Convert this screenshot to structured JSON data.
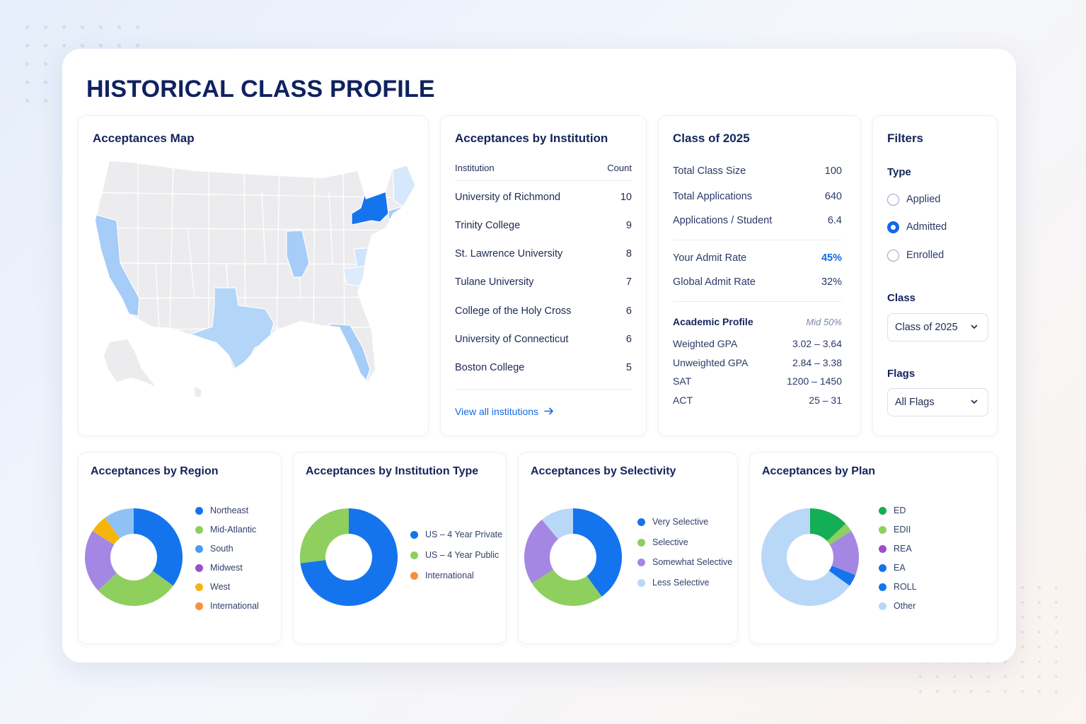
{
  "page": {
    "title": "HISTORICAL CLASS PROFILE"
  },
  "colors": {
    "blue": "#1474EE",
    "green": "#8ECF5E",
    "sky": "#4A9CEE",
    "purple": "#A487E3",
    "violet": "#9B4FCB",
    "amber": "#F6B40F",
    "orange": "#F4913C",
    "pale": "#B9D8F8",
    "emerald": "#14AE56",
    "accent": "#1368E8"
  },
  "map": {
    "title": "Acceptances Map",
    "highlighted_states": [
      {
        "state": "New York",
        "level": "high"
      },
      {
        "state": "California",
        "level": "medium"
      },
      {
        "state": "Illinois",
        "level": "medium"
      },
      {
        "state": "Texas",
        "level": "low"
      },
      {
        "state": "Florida",
        "level": "low"
      },
      {
        "state": "Massachusetts",
        "level": "low"
      },
      {
        "state": "Maine",
        "level": "faint"
      },
      {
        "state": "Virginia",
        "level": "faint"
      },
      {
        "state": "North Carolina",
        "level": "faint"
      }
    ]
  },
  "institutions": {
    "title": "Acceptances by Institution",
    "col_institution": "Institution",
    "col_count": "Count",
    "rows": [
      {
        "name": "University of Richmond",
        "count": "10"
      },
      {
        "name": "Trinity College",
        "count": "9"
      },
      {
        "name": "St. Lawrence University",
        "count": "8"
      },
      {
        "name": "Tulane University",
        "count": "7"
      },
      {
        "name": "College of the Holy Cross",
        "count": "6"
      },
      {
        "name": "University of Connecticut",
        "count": "6"
      },
      {
        "name": "Boston College",
        "count": "5"
      }
    ],
    "view_all": "View all institutions"
  },
  "class_profile": {
    "title": "Class of 2025",
    "total_class_size_label": "Total Class Size",
    "total_class_size": "100",
    "total_applications_label": "Total Applications",
    "total_applications": "640",
    "apps_per_student_label": "Applications / Student",
    "apps_per_student": "6.4",
    "your_admit_rate_label": "Your Admit Rate",
    "your_admit_rate": "45%",
    "global_admit_rate_label": "Global Admit Rate",
    "global_admit_rate": "32%",
    "academic_title": "Academic Profile",
    "academic_mid": "Mid 50%",
    "weighted_gpa_label": "Weighted GPA",
    "weighted_gpa": "3.02 – 3.64",
    "unweighted_gpa_label": "Unweighted GPA",
    "unweighted_gpa": "2.84 – 3.38",
    "sat_label": "SAT",
    "sat": "1200 – 1450",
    "act_label": "ACT",
    "act": "25 – 31"
  },
  "filters": {
    "title": "Filters",
    "type_label": "Type",
    "type_options": [
      "Applied",
      "Admitted",
      "Enrolled"
    ],
    "type_selected": "Admitted",
    "class_label": "Class",
    "class_value": "Class of 2025",
    "flags_label": "Flags",
    "flags_value": "All Flags"
  },
  "chart_data": [
    {
      "type": "pie",
      "title": "Acceptances by Region",
      "series": [
        {
          "name": "Northeast",
          "value": 35,
          "color": "#1474EE"
        },
        {
          "name": "Mid-Atlantic",
          "value": 28,
          "color": "#8ECF5E"
        },
        {
          "name": "South",
          "value": 0,
          "color": "#4A9CEE"
        },
        {
          "name": "Midwest",
          "value": 21,
          "color": "#A487E3"
        },
        {
          "name": "West",
          "value": 6,
          "color": "#F6B40F"
        },
        {
          "name": "International",
          "value": 10,
          "color": "#8FC2F4"
        }
      ],
      "legend": [
        {
          "name": "Northeast",
          "color": "#1474EE"
        },
        {
          "name": "Mid-Atlantic",
          "color": "#8ECF5E"
        },
        {
          "name": "South",
          "color": "#4A9CEE"
        },
        {
          "name": "Midwest",
          "color": "#9B4FCB"
        },
        {
          "name": "West",
          "color": "#F6B40F"
        },
        {
          "name": "International",
          "color": "#F4913C"
        }
      ]
    },
    {
      "type": "pie",
      "title": "Acceptances by Institution Type",
      "series": [
        {
          "name": "US – 4 Year Private",
          "value": 73,
          "color": "#1474EE"
        },
        {
          "name": "US – 4 Year Public",
          "value": 27,
          "color": "#8ECF5E"
        },
        {
          "name": "International",
          "value": 0,
          "color": "#F4913C"
        }
      ],
      "legend": [
        {
          "name": "US – 4 Year Private",
          "color": "#1474EE"
        },
        {
          "name": "US – 4 Year Public",
          "color": "#8ECF5E"
        },
        {
          "name": "International",
          "color": "#F4913C"
        }
      ]
    },
    {
      "type": "pie",
      "title": "Acceptances by Selectivity",
      "series": [
        {
          "name": "Very Selective",
          "value": 40,
          "color": "#1474EE"
        },
        {
          "name": "Selective",
          "value": 26,
          "color": "#8ECF5E"
        },
        {
          "name": "Somewhat Selective",
          "value": 23,
          "color": "#A487E3"
        },
        {
          "name": "Less Selective",
          "value": 11,
          "color": "#B9D8F8"
        }
      ],
      "legend": [
        {
          "name": "Very Selective",
          "color": "#1474EE"
        },
        {
          "name": "Selective",
          "color": "#8ECF5E"
        },
        {
          "name": "Somewhat Selective",
          "color": "#A487E3"
        },
        {
          "name": "Less Selective",
          "color": "#B9D8F8"
        }
      ]
    },
    {
      "type": "pie",
      "title": "Acceptances by Plan",
      "series": [
        {
          "name": "ED",
          "value": 13,
          "color": "#14AE56"
        },
        {
          "name": "EDII",
          "value": 3,
          "color": "#8ECF5E"
        },
        {
          "name": "REA",
          "value": 15,
          "color": "#A487E3"
        },
        {
          "name": "EA",
          "value": 0,
          "color": "#1474EE"
        },
        {
          "name": "ROLL",
          "value": 4,
          "color": "#1474EE"
        },
        {
          "name": "Other",
          "value": 65,
          "color": "#B9D8F8"
        }
      ],
      "legend": [
        {
          "name": "ED",
          "color": "#14AE56"
        },
        {
          "name": "EDII",
          "color": "#8ECF5E"
        },
        {
          "name": "REA",
          "color": "#9B4FCB"
        },
        {
          "name": "EA",
          "color": "#1474EE"
        },
        {
          "name": "ROLL",
          "color": "#1474EE"
        },
        {
          "name": "Other",
          "color": "#B9D8F8"
        }
      ]
    }
  ]
}
